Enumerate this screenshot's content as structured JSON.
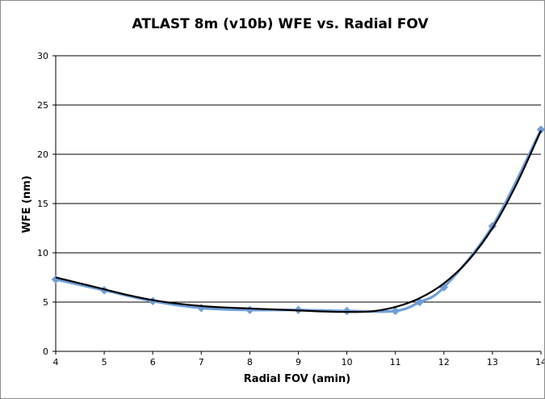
{
  "chart_data": {
    "type": "line",
    "title": "ATLAST 8m (v10b) WFE vs. Radial FOV",
    "xlabel": "Radial FOV (amin)",
    "ylabel": "WFE (nm)",
    "xlim": [
      4,
      14
    ],
    "ylim": [
      0,
      30
    ],
    "xticks": [
      "4",
      "5",
      "6",
      "7",
      "8",
      "9",
      "10",
      "11",
      "12",
      "13",
      "14"
    ],
    "yticks": [
      "0",
      "5",
      "10",
      "15",
      "20",
      "25",
      "30"
    ],
    "grid": "horizontal",
    "legend": "none",
    "series": [
      {
        "kind": "data",
        "color": "#6f9ed8",
        "marker": "diamond",
        "points": [
          [
            4,
            7.3
          ],
          [
            5,
            6.2
          ],
          [
            6,
            5.1
          ],
          [
            7,
            4.4
          ],
          [
            8,
            4.2
          ],
          [
            9,
            4.2
          ],
          [
            10,
            4.1
          ],
          [
            11,
            4.1
          ],
          [
            11.5,
            5.0
          ],
          [
            12,
            6.5
          ],
          [
            13,
            12.7
          ],
          [
            14,
            22.5
          ]
        ]
      },
      {
        "kind": "trendline",
        "color": "#000000",
        "points": [
          [
            4,
            7.5
          ],
          [
            4.5,
            6.9
          ],
          [
            5,
            6.3
          ],
          [
            5.5,
            5.7
          ],
          [
            6,
            5.2
          ],
          [
            6.5,
            4.85
          ],
          [
            7,
            4.6
          ],
          [
            7.5,
            4.45
          ],
          [
            8,
            4.35
          ],
          [
            8.5,
            4.25
          ],
          [
            9,
            4.15
          ],
          [
            9.5,
            4.05
          ],
          [
            10,
            4.0
          ],
          [
            10.5,
            4.05
          ],
          [
            11,
            4.5
          ],
          [
            11.5,
            5.4
          ],
          [
            12,
            6.9
          ],
          [
            12.5,
            9.2
          ],
          [
            13,
            12.5
          ],
          [
            13.5,
            17.0
          ],
          [
            14,
            22.4
          ]
        ]
      }
    ]
  }
}
